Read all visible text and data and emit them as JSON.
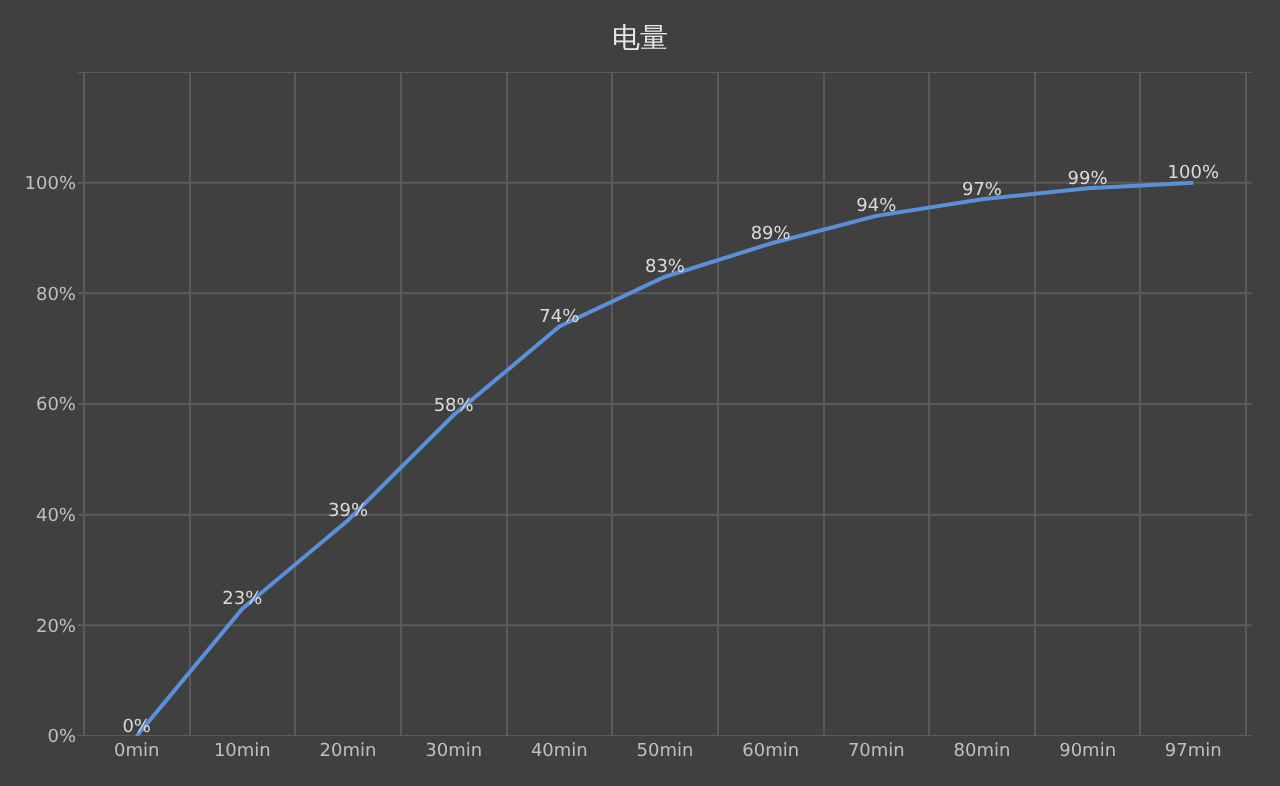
{
  "chart_data": {
    "type": "line",
    "title": "电量",
    "categories": [
      "0min",
      "10min",
      "20min",
      "30min",
      "40min",
      "50min",
      "60min",
      "70min",
      "80min",
      "90min",
      "97min"
    ],
    "series": [
      {
        "color": "#5b8fd8",
        "values": [
          0,
          23,
          39,
          58,
          74,
          83,
          89,
          94,
          97,
          99,
          100
        ],
        "value_labels": [
          "0%",
          "23%",
          "39%",
          "58%",
          "74%",
          "83%",
          "89%",
          "94%",
          "97%",
          "99%",
          "100%"
        ]
      }
    ],
    "ylim": [
      0,
      120
    ],
    "yticks": [
      {
        "value": 0,
        "label": "0%"
      },
      {
        "value": 20,
        "label": "20%"
      },
      {
        "value": 40,
        "label": "40%"
      },
      {
        "value": 60,
        "label": "60%"
      },
      {
        "value": 80,
        "label": "80%"
      },
      {
        "value": 100,
        "label": "100%"
      },
      {
        "value": 120,
        "label": null
      }
    ],
    "grid": true,
    "marker": "none",
    "line_style": "solid"
  }
}
